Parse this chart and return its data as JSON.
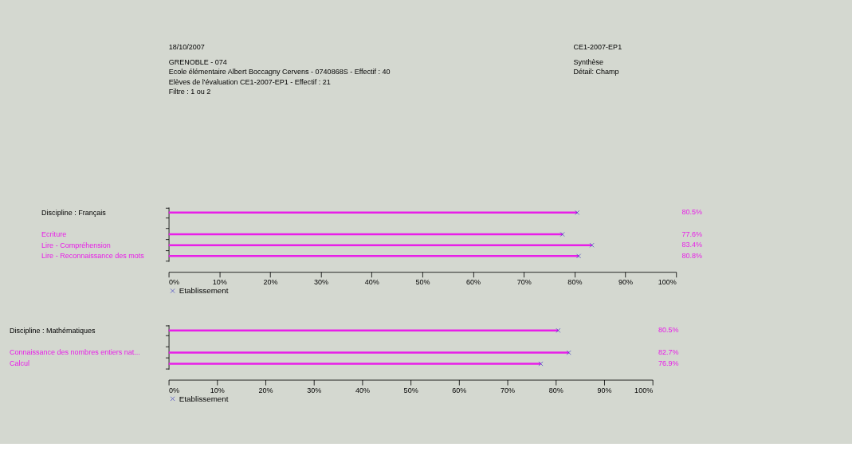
{
  "chart_data": [
    {
      "type": "bar",
      "orientation": "horizontal",
      "annotations": [
        "18/10/2007",
        "GRENOBLE - 074",
        "Ecole élémentaire Albert Boccagny Cervens -  0740868S - Effectif : 40",
        " Elèves de l'évaluation CE1-2007-EP1 - Effectif : 21",
        "Filtre : 1 ou 2",
        "CE1-2007-EP1",
        "Synthèse",
        "Détail: Champ"
      ],
      "categories": [
        "Discipline : Français",
        null,
        "Ecriture",
        "Lire - Compréhension",
        "Lire - Reconnaissance des mots"
      ],
      "series": [
        {
          "color": "#e81ee8",
          "values": [
            80.5,
            null,
            77.6,
            83.4,
            80.8
          ],
          "value_labels": [
            "80.5%",
            null,
            "77.6%",
            "83.4%",
            "80.8%"
          ]
        },
        {
          "name": "Etablissement",
          "type": "scatter",
          "color": "#2020c0",
          "values": [
            80.5,
            null,
            77.6,
            83.4,
            80.8
          ]
        }
      ],
      "marker": "cross",
      "xlim": [
        0,
        100
      ],
      "xticks": [
        {
          "value": 0,
          "label": "0%"
        },
        {
          "value": 10,
          "label": "10%"
        },
        {
          "value": 20,
          "label": "20%"
        },
        {
          "value": 30,
          "label": "30%"
        },
        {
          "value": 40,
          "label": "40%"
        },
        {
          "value": 50,
          "label": "50%"
        },
        {
          "value": 60,
          "label": "60%"
        },
        {
          "value": 70,
          "label": "70%"
        },
        {
          "value": 80,
          "label": "80%"
        },
        {
          "value": 90,
          "label": "90%"
        },
        {
          "value": 100,
          "label": "100%"
        }
      ],
      "legend": "bottom"
    },
    {
      "type": "bar",
      "orientation": "horizontal",
      "categories": [
        "Discipline : Mathématiques",
        null,
        "Connaissance des nombres entiers nat...",
        "Calcul"
      ],
      "series": [
        {
          "color": "#e81ee8",
          "values": [
            80.5,
            null,
            82.7,
            76.9
          ],
          "value_labels": [
            "80.5%",
            null,
            "82.7%",
            "76.9%"
          ]
        },
        {
          "name": "Etablissement",
          "type": "scatter",
          "color": "#2020c0",
          "values": [
            80.5,
            null,
            82.7,
            76.9
          ]
        }
      ],
      "marker": "cross",
      "xlim": [
        0,
        100
      ],
      "xticks": [
        {
          "value": 0,
          "label": "0%"
        },
        {
          "value": 10,
          "label": "10%"
        },
        {
          "value": 20,
          "label": "20%"
        },
        {
          "value": 30,
          "label": "30%"
        },
        {
          "value": 40,
          "label": "40%"
        },
        {
          "value": 50,
          "label": "50%"
        },
        {
          "value": 60,
          "label": "60%"
        },
        {
          "value": 70,
          "label": "70%"
        },
        {
          "value": 80,
          "label": "80%"
        },
        {
          "value": 90,
          "label": "90%"
        },
        {
          "value": 100,
          "label": "100%"
        }
      ],
      "legend": "bottom"
    }
  ]
}
